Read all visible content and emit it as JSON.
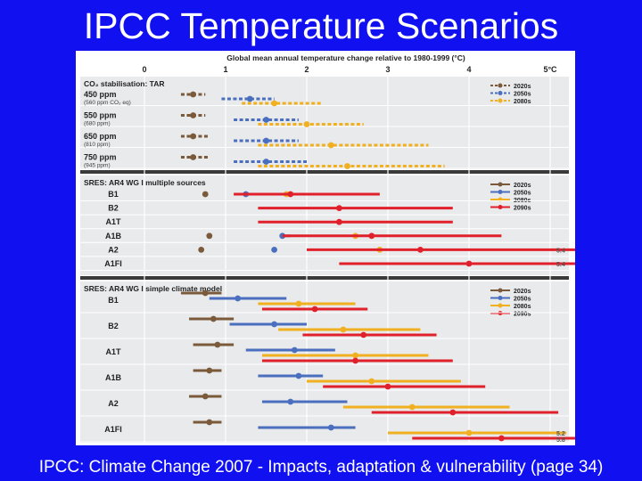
{
  "slide": {
    "title": "IPCC Temperature Scenarios",
    "caption": "IPCC: Climate Change 2007 - Impacts, adaptation & vulnerability (page 34)"
  },
  "colors": {
    "slide_bg": "#1010f0",
    "c2020": "#7a5a3a",
    "c2050": "#4a6fbf",
    "c2080": "#f0b020",
    "c2090": "#e0202a"
  },
  "chart_data": {
    "type": "range-dot",
    "title": "Global mean annual temperature change relative to 1980-1999 (°C)",
    "xlim": [
      0,
      5
    ],
    "ticks": [
      {
        "value": 0,
        "label": "0"
      },
      {
        "value": 1,
        "label": "1"
      },
      {
        "value": 2,
        "label": "2"
      },
      {
        "value": 3,
        "label": "3"
      },
      {
        "value": 4,
        "label": "4"
      },
      {
        "value": 5,
        "label": "5°C"
      }
    ],
    "panels": [
      {
        "id": "tar",
        "heading": "CO₂ stabilisation: TAR",
        "legend": [
          {
            "key": "c2020",
            "label": "2020s",
            "dashed": true
          },
          {
            "key": "c2050",
            "label": "2050s",
            "dashed": true
          },
          {
            "key": "c2080",
            "label": "2080s",
            "dashed": true
          }
        ],
        "rows": [
          {
            "label": "450 ppm",
            "sublabel": "(560 ppm CO₂ eq)",
            "series": [
              {
                "key": "c2020",
                "low": 0.45,
                "high": 0.75,
                "mid": 0.6,
                "dashed": true
              },
              {
                "key": "c2050",
                "low": 0.95,
                "high": 1.6,
                "mid": 1.3,
                "dashed": true
              },
              {
                "key": "c2080",
                "low": 1.2,
                "high": 2.2,
                "mid": 1.6,
                "dashed": true
              }
            ]
          },
          {
            "label": "550 ppm",
            "sublabel": "(680 ppm)",
            "series": [
              {
                "key": "c2020",
                "low": 0.45,
                "high": 0.75,
                "mid": 0.6,
                "dashed": true
              },
              {
                "key": "c2050",
                "low": 1.1,
                "high": 1.9,
                "mid": 1.5,
                "dashed": true
              },
              {
                "key": "c2080",
                "low": 1.4,
                "high": 2.7,
                "mid": 2.0,
                "dashed": true
              }
            ]
          },
          {
            "label": "650 ppm",
            "sublabel": "(810 ppm)",
            "series": [
              {
                "key": "c2020",
                "low": 0.45,
                "high": 0.8,
                "mid": 0.6,
                "dashed": true
              },
              {
                "key": "c2050",
                "low": 1.1,
                "high": 1.9,
                "mid": 1.5,
                "dashed": true
              },
              {
                "key": "c2080",
                "low": 1.4,
                "high": 3.5,
                "mid": 2.3,
                "dashed": true
              }
            ]
          },
          {
            "label": "750 ppm",
            "sublabel": "(945 ppm)",
            "series": [
              {
                "key": "c2020",
                "low": 0.45,
                "high": 0.8,
                "mid": 0.6,
                "dashed": true
              },
              {
                "key": "c2050",
                "low": 1.1,
                "high": 2.0,
                "mid": 1.5,
                "dashed": true
              },
              {
                "key": "c2080",
                "low": 1.4,
                "high": 3.7,
                "mid": 2.5,
                "dashed": true
              }
            ]
          }
        ]
      },
      {
        "id": "multi",
        "heading": "SRES: AR4 WG I multiple sources",
        "legend": [
          {
            "key": "c2020",
            "label": "2020s",
            "dashed": false
          },
          {
            "key": "c2050",
            "label": "2050s",
            "dashed": false
          },
          {
            "key": "c2080",
            "label": "2080s",
            "dashed": false
          },
          {
            "key": "c2090",
            "label": "2090s",
            "dashed": false
          }
        ],
        "rows": [
          {
            "label": "B1",
            "series": [
              {
                "key": "c2020",
                "mid": 0.75
              },
              {
                "key": "c2050",
                "mid": 1.25
              },
              {
                "key": "c2080",
                "mid": 1.75
              },
              {
                "key": "c2090",
                "low": 1.1,
                "high": 2.9,
                "mid": 1.8
              }
            ]
          },
          {
            "label": "B2",
            "series": [
              {
                "key": "c2090",
                "low": 1.4,
                "high": 3.8,
                "mid": 2.4
              }
            ]
          },
          {
            "label": "A1T",
            "series": [
              {
                "key": "c2090",
                "low": 1.4,
                "high": 3.8,
                "mid": 2.4
              }
            ]
          },
          {
            "label": "A1B",
            "series": [
              {
                "key": "c2020",
                "mid": 0.8
              },
              {
                "key": "c2050",
                "low": 1.7,
                "high": 1.8,
                "mid": 1.7
              },
              {
                "key": "c2080",
                "mid": 2.6
              },
              {
                "key": "c2090",
                "low": 1.7,
                "high": 4.4,
                "mid": 2.8
              }
            ]
          },
          {
            "label": "A2",
            "series": [
              {
                "key": "c2020",
                "mid": 0.7
              },
              {
                "key": "c2050",
                "mid": 1.6
              },
              {
                "key": "c2080",
                "mid": 2.9
              },
              {
                "key": "c2090",
                "low": 2.0,
                "high": 5.4,
                "mid": 3.4
              }
            ],
            "note": "5.4"
          },
          {
            "label": "A1FI",
            "series": [
              {
                "key": "c2090",
                "low": 2.4,
                "high": 5.4,
                "mid": 4.0
              }
            ],
            "note": "5.4"
          }
        ]
      },
      {
        "id": "simple",
        "heading": "SRES: AR4 WG I simple climate model",
        "legend": [
          {
            "key": "c2020",
            "label": "2020s",
            "dashed": false
          },
          {
            "key": "c2050",
            "label": "2050s",
            "dashed": false
          },
          {
            "key": "c2080",
            "label": "2080s",
            "dashed": false
          },
          {
            "key": "c2090",
            "label": "2090s",
            "dashed": false
          }
        ],
        "rows": [
          {
            "label": "B1",
            "series": [
              {
                "key": "c2020",
                "low": 0.45,
                "high": 0.95,
                "mid": 0.75
              },
              {
                "key": "c2050",
                "low": 0.8,
                "high": 1.75,
                "mid": 1.15
              },
              {
                "key": "c2080",
                "low": 1.4,
                "high": 2.6,
                "mid": 1.9
              },
              {
                "key": "c2090",
                "low": 1.45,
                "high": 2.75,
                "mid": 2.1
              }
            ]
          },
          {
            "label": "B2",
            "series": [
              {
                "key": "c2020",
                "low": 0.55,
                "high": 1.1,
                "mid": 0.85
              },
              {
                "key": "c2050",
                "low": 1.05,
                "high": 2.0,
                "mid": 1.6
              },
              {
                "key": "c2080",
                "low": 1.65,
                "high": 3.4,
                "mid": 2.45
              },
              {
                "key": "c2090",
                "low": 1.95,
                "high": 3.6,
                "mid": 2.7
              }
            ]
          },
          {
            "label": "A1T",
            "series": [
              {
                "key": "c2020",
                "low": 0.6,
                "high": 1.1,
                "mid": 0.9
              },
              {
                "key": "c2050",
                "low": 1.25,
                "high": 2.35,
                "mid": 1.85
              },
              {
                "key": "c2080",
                "low": 1.45,
                "high": 3.5,
                "mid": 2.6
              },
              {
                "key": "c2090",
                "low": 1.45,
                "high": 3.8,
                "mid": 2.6
              }
            ]
          },
          {
            "label": "A1B",
            "series": [
              {
                "key": "c2020",
                "low": 0.6,
                "high": 0.95,
                "mid": 0.8
              },
              {
                "key": "c2050",
                "low": 1.4,
                "high": 2.2,
                "mid": 1.9
              },
              {
                "key": "c2080",
                "low": 2.0,
                "high": 3.9,
                "mid": 2.8
              },
              {
                "key": "c2090",
                "low": 2.2,
                "high": 4.2,
                "mid": 3.0
              }
            ]
          },
          {
            "label": "A2",
            "series": [
              {
                "key": "c2020",
                "low": 0.55,
                "high": 0.95,
                "mid": 0.75
              },
              {
                "key": "c2050",
                "low": 1.45,
                "high": 2.5,
                "mid": 1.8
              },
              {
                "key": "c2080",
                "low": 2.45,
                "high": 4.5,
                "mid": 3.3
              },
              {
                "key": "c2090",
                "low": 2.8,
                "high": 5.1,
                "mid": 3.8
              }
            ]
          },
          {
            "label": "A1FI",
            "series": [
              {
                "key": "c2020",
                "low": 0.6,
                "high": 0.95,
                "mid": 0.8
              },
              {
                "key": "c2050",
                "low": 1.4,
                "high": 2.6,
                "mid": 2.3
              },
              {
                "key": "c2080",
                "low": 3.0,
                "high": 5.2,
                "mid": 4.0
              },
              {
                "key": "c2090",
                "low": 3.3,
                "high": 5.8,
                "mid": 4.4
              }
            ],
            "note": "5.2 / 5.8"
          }
        ]
      }
    ]
  }
}
